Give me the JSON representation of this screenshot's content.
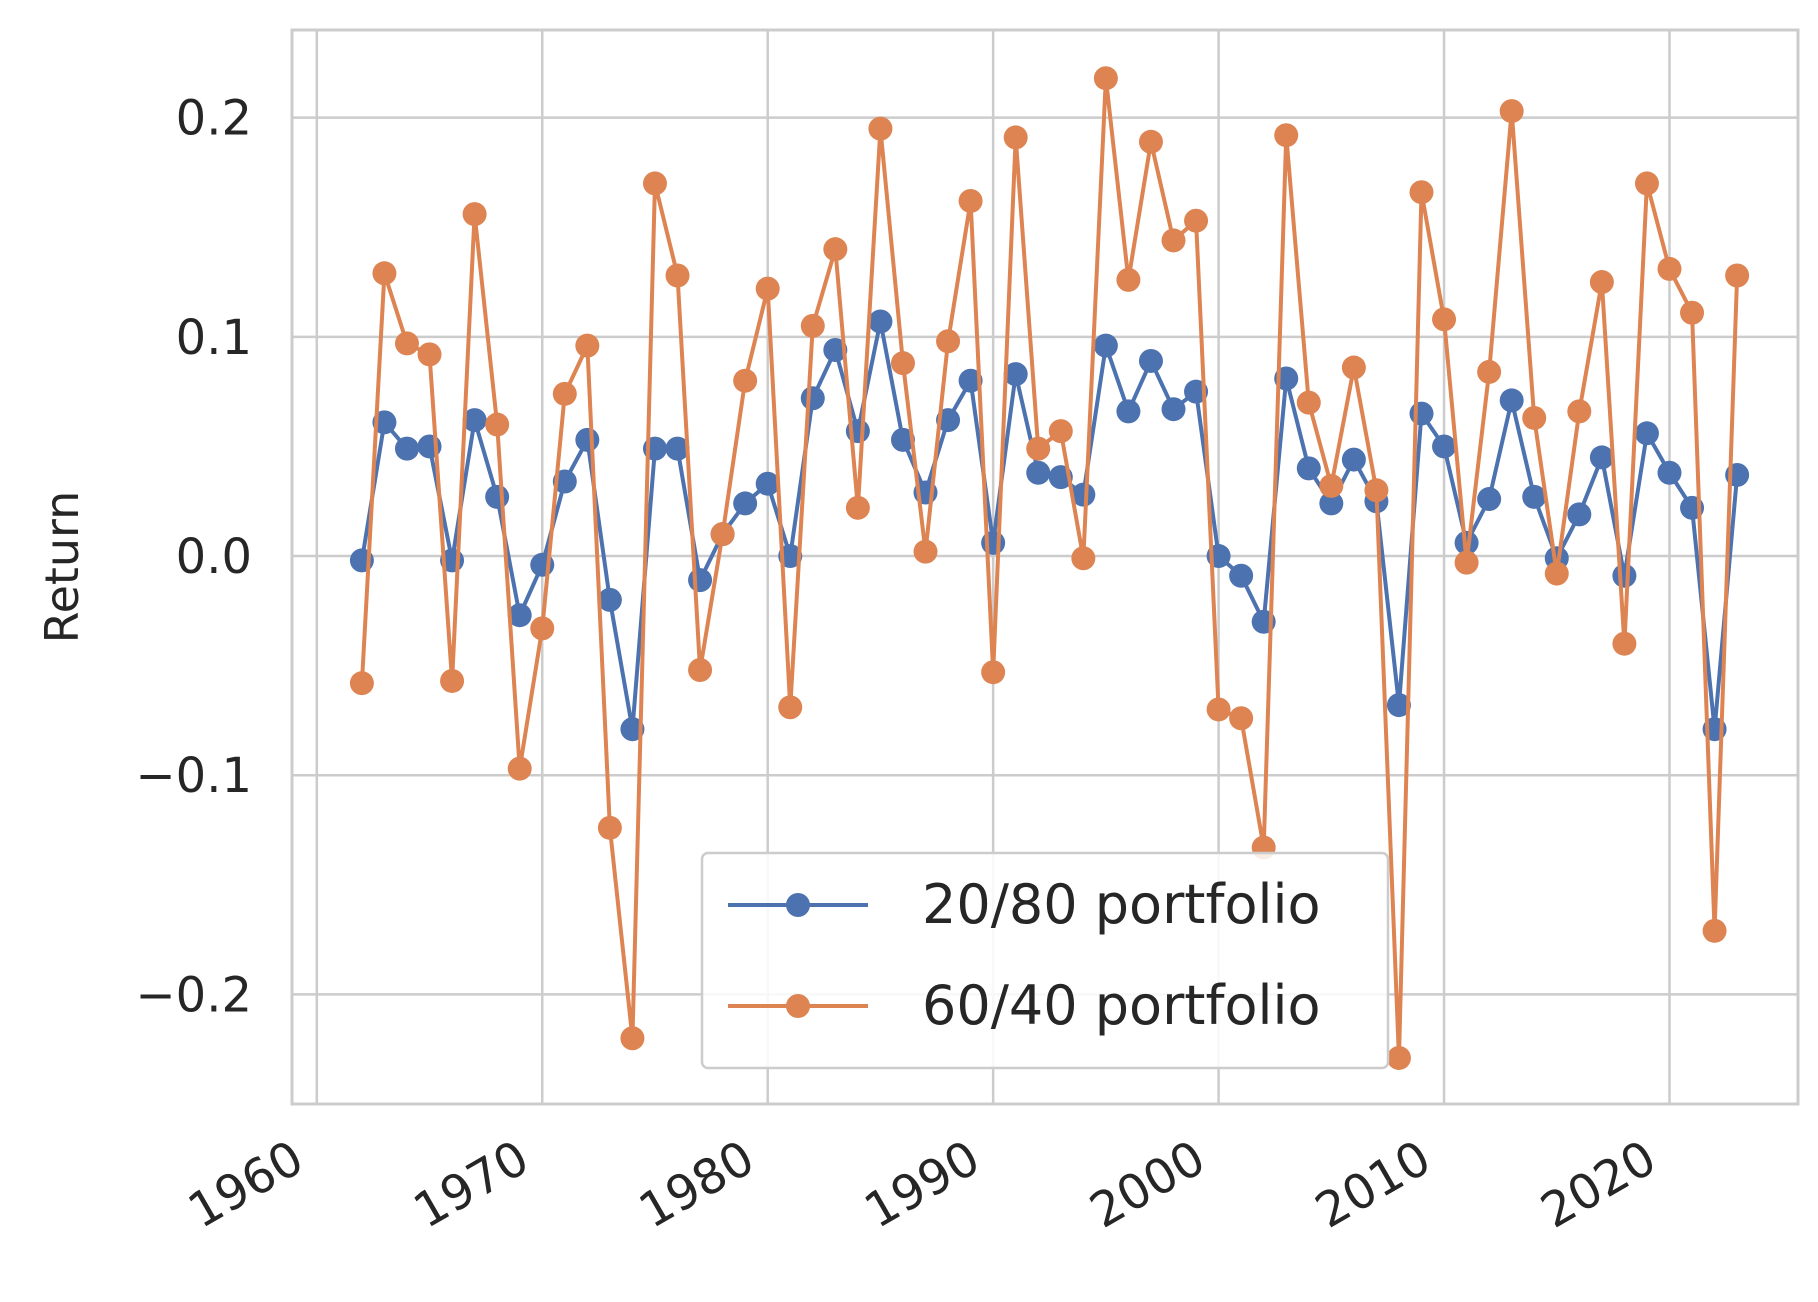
{
  "chart_data": {
    "type": "line",
    "title": "",
    "xlabel": "",
    "ylabel": "Return",
    "xlim": [
      1958.9,
      2025.7
    ],
    "ylim": [
      -0.25,
      0.24
    ],
    "x_ticks": [
      1960,
      1970,
      1980,
      1990,
      2000,
      2010,
      2020
    ],
    "x_tick_labels": [
      "1960",
      "1970",
      "1980",
      "1990",
      "2000",
      "2010",
      "2020"
    ],
    "y_ticks": [
      -0.2,
      -0.1,
      0.0,
      0.1,
      0.2
    ],
    "y_tick_labels": [
      "−0.2",
      "−0.1",
      "0.0",
      "0.1",
      "0.2"
    ],
    "grid": true,
    "legend_position": "bottom-center",
    "x": [
      1962,
      1963,
      1964,
      1965,
      1966,
      1967,
      1968,
      1969,
      1970,
      1971,
      1972,
      1973,
      1974,
      1975,
      1976,
      1977,
      1978,
      1979,
      1980,
      1981,
      1982,
      1983,
      1984,
      1985,
      1986,
      1987,
      1988,
      1989,
      1990,
      1991,
      1992,
      1993,
      1994,
      1995,
      1996,
      1997,
      1998,
      1999,
      2000,
      2001,
      2002,
      2003,
      2004,
      2005,
      2006,
      2007,
      2008,
      2009,
      2010,
      2011,
      2012,
      2013,
      2014,
      2015,
      2016,
      2017,
      2018,
      2019,
      2020,
      2021,
      2022,
      2023
    ],
    "series": [
      {
        "name": "20/80 portfolio",
        "color": "#4c72b0",
        "values": [
          -0.002,
          0.061,
          0.049,
          0.05,
          -0.002,
          0.062,
          0.027,
          -0.027,
          -0.004,
          0.034,
          0.053,
          -0.02,
          -0.079,
          0.049,
          0.049,
          -0.011,
          0.01,
          0.024,
          0.033,
          0.0,
          0.072,
          0.094,
          0.057,
          0.107,
          0.053,
          0.029,
          0.062,
          0.08,
          0.006,
          0.083,
          0.038,
          0.036,
          0.028,
          0.096,
          0.066,
          0.089,
          0.067,
          0.075,
          0.0,
          -0.009,
          -0.03,
          0.081,
          0.04,
          0.024,
          0.044,
          0.025,
          -0.068,
          0.065,
          0.05,
          0.006,
          0.026,
          0.071,
          0.027,
          -0.001,
          0.019,
          0.045,
          -0.009,
          0.056,
          0.038,
          0.022,
          -0.079,
          0.037
        ]
      },
      {
        "name": "60/40 portfolio",
        "color": "#dd8452",
        "values": [
          -0.058,
          0.129,
          0.097,
          0.092,
          -0.057,
          0.156,
          0.06,
          -0.097,
          -0.033,
          0.074,
          0.096,
          -0.124,
          -0.22,
          0.17,
          0.128,
          -0.052,
          0.01,
          0.08,
          0.122,
          -0.069,
          0.105,
          0.14,
          0.022,
          0.195,
          0.088,
          0.002,
          0.098,
          0.162,
          -0.053,
          0.191,
          0.049,
          0.057,
          -0.001,
          0.218,
          0.126,
          0.189,
          0.144,
          0.153,
          -0.07,
          -0.074,
          -0.133,
          0.192,
          0.07,
          0.032,
          0.086,
          0.03,
          -0.229,
          0.166,
          0.108,
          -0.003,
          0.084,
          0.203,
          0.063,
          -0.008,
          0.066,
          0.125,
          -0.04,
          0.17,
          0.131,
          0.111,
          -0.171,
          0.128
        ]
      }
    ]
  }
}
